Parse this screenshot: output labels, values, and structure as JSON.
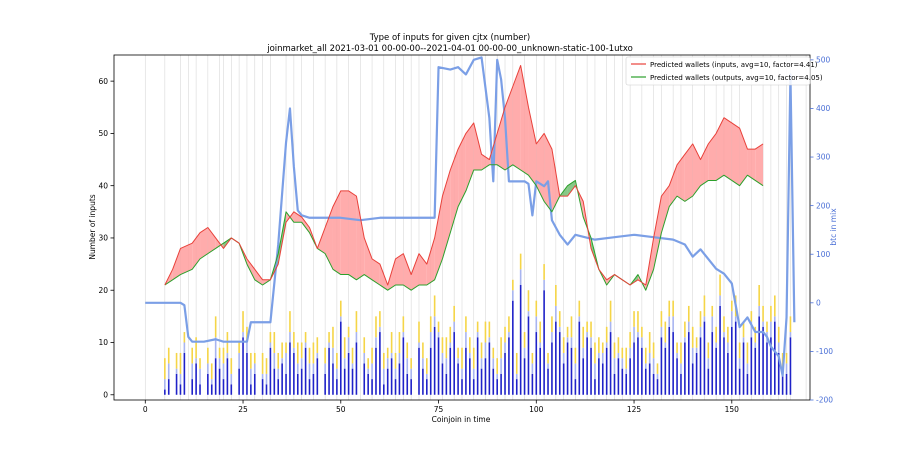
{
  "chart_data": {
    "type": "line",
    "title": "Type of inputs for given cjtx (number)",
    "subtitle": "joinmarket_all 2021-03-01 00-00-00--2021-04-01 00-00-00_unknown-static-100-1utxo",
    "xlabel": "Coinjoin in time",
    "ylabel": "Number of inputs",
    "y2label": "btc in mix",
    "xlim": [
      -8,
      170
    ],
    "ylim": [
      -1,
      65
    ],
    "y2lim": [
      -200,
      510
    ],
    "x_ticks": [
      0,
      25,
      50,
      75,
      100,
      125,
      150
    ],
    "y_ticks": [
      0,
      10,
      20,
      30,
      40,
      50,
      60
    ],
    "y2_ticks": [
      -200,
      -100,
      0,
      100,
      200,
      300,
      400,
      500
    ],
    "grid": false,
    "legend_position": "top-right",
    "colors": {
      "inputs": "#e8413a",
      "inputs_fill": "#ff9d9d",
      "outputs": "#2ca02c",
      "outputs_fill": "#5fb65f",
      "btc": "#7b9fe6",
      "bars_dark": "#1f22c8",
      "bars_light": "#a8b4f0",
      "bars_yellow": "#f5d547",
      "y2_axis": "#4a6fd6",
      "vlines": "#d9d9d9"
    },
    "series": [
      {
        "name": "Predicted wallets (inputs, avg=10, factor=4.41)",
        "x": [
          5,
          7,
          9,
          12,
          14,
          16,
          18,
          20,
          22,
          24,
          26,
          28,
          30,
          32,
          34,
          36,
          38,
          40,
          42,
          44,
          46,
          48,
          50,
          52,
          54,
          56,
          58,
          60,
          62,
          64,
          66,
          68,
          70,
          72,
          74,
          76,
          78,
          80,
          82,
          84,
          86,
          88,
          90,
          92,
          94,
          96,
          98,
          100,
          102,
          104,
          106,
          108,
          110,
          112,
          114,
          116,
          118,
          120,
          122,
          124,
          126,
          128,
          130,
          132,
          134,
          136,
          138,
          140,
          142,
          144,
          146,
          148,
          150,
          152,
          154,
          156,
          158
        ],
        "values": [
          21,
          24,
          28,
          29,
          31,
          32,
          30,
          28,
          30,
          29,
          26,
          24,
          22,
          22,
          25,
          33,
          35,
          34,
          32,
          28,
          32,
          36,
          39,
          39,
          38,
          30,
          26,
          25,
          21,
          26,
          27,
          23,
          27,
          25,
          30,
          38,
          43,
          47,
          50,
          52,
          46,
          45,
          50,
          55,
          59,
          63,
          55,
          48,
          50,
          47,
          38,
          38,
          40,
          37,
          28,
          24,
          22,
          23,
          22,
          21,
          22,
          21,
          30,
          38,
          40,
          44,
          46,
          48,
          45,
          48,
          50,
          53,
          52,
          51,
          47,
          47,
          48
        ]
      },
      {
        "name": "Predicted wallets (outputs, avg=10, factor=4.05)",
        "x": [
          5,
          7,
          9,
          12,
          14,
          16,
          18,
          20,
          22,
          24,
          26,
          28,
          30,
          32,
          34,
          36,
          38,
          40,
          42,
          44,
          46,
          48,
          50,
          52,
          54,
          56,
          58,
          60,
          62,
          64,
          66,
          68,
          70,
          72,
          74,
          76,
          78,
          80,
          82,
          84,
          86,
          88,
          90,
          92,
          94,
          96,
          98,
          100,
          102,
          104,
          106,
          108,
          110,
          112,
          114,
          116,
          118,
          120,
          122,
          124,
          126,
          128,
          130,
          132,
          134,
          136,
          138,
          140,
          142,
          144,
          146,
          148,
          150,
          152,
          154,
          156,
          158
        ],
        "values": [
          21,
          22,
          23,
          24,
          26,
          27,
          28,
          29,
          30,
          29,
          25,
          22,
          21,
          22,
          27,
          35,
          33,
          33,
          31,
          28,
          27,
          24,
          23,
          23,
          22,
          23,
          22,
          21,
          20,
          21,
          21,
          20,
          21,
          21,
          22,
          26,
          31,
          36,
          39,
          43,
          43,
          44,
          44,
          43,
          44,
          43,
          42,
          40,
          37,
          35,
          38,
          40,
          41,
          34,
          30,
          24,
          21,
          23,
          22,
          21,
          23,
          20,
          24,
          31,
          36,
          38,
          37,
          38,
          40,
          41,
          41,
          42,
          41,
          40,
          42,
          41,
          40
        ]
      },
      {
        "name": "btc in mix",
        "axis": "right",
        "x": [
          0,
          9,
          10,
          11,
          12,
          15,
          18,
          20,
          24,
          25,
          26,
          27,
          30,
          32,
          34,
          36,
          37,
          38,
          39,
          40,
          42,
          45,
          50,
          55,
          60,
          65,
          70,
          74,
          75,
          78,
          80,
          82,
          84,
          86,
          88,
          89,
          90,
          91,
          92,
          93,
          95,
          97,
          98,
          99,
          100,
          102,
          103,
          104,
          106,
          108,
          110,
          115,
          120,
          125,
          130,
          135,
          138,
          140,
          142,
          144,
          146,
          148,
          150,
          152,
          154,
          156,
          158,
          159,
          160,
          161,
          162,
          163,
          164,
          165,
          166
        ],
        "values": [
          0,
          0,
          -5,
          -70,
          -80,
          -80,
          -75,
          -80,
          -80,
          -80,
          -80,
          -40,
          -40,
          -40,
          120,
          330,
          400,
          280,
          190,
          180,
          175,
          175,
          175,
          170,
          175,
          175,
          175,
          175,
          485,
          480,
          485,
          470,
          500,
          505,
          380,
          250,
          500,
          460,
          380,
          250,
          250,
          250,
          245,
          180,
          250,
          240,
          250,
          170,
          140,
          120,
          140,
          130,
          135,
          140,
          135,
          130,
          120,
          95,
          110,
          90,
          70,
          60,
          40,
          -50,
          -30,
          -60,
          -60,
          -70,
          -90,
          -100,
          -110,
          -150,
          -30,
          470,
          -40
        ]
      }
    ],
    "bars_note": "per-coinjoin stacked input bars",
    "bars": {
      "x": [
        5,
        6,
        8,
        9,
        10,
        12,
        13,
        14,
        16,
        17,
        18,
        19,
        20,
        21,
        22,
        24,
        25,
        26,
        27,
        28,
        30,
        31,
        32,
        33,
        34,
        35,
        36,
        37,
        38,
        39,
        40,
        41,
        42,
        43,
        44,
        46,
        47,
        48,
        49,
        50,
        51,
        52,
        53,
        54,
        56,
        57,
        58,
        59,
        60,
        61,
        62,
        63,
        64,
        65,
        66,
        67,
        68,
        70,
        71,
        72,
        73,
        74,
        75,
        76,
        77,
        78,
        79,
        80,
        81,
        82,
        83,
        84,
        85,
        86,
        87,
        88,
        89,
        90,
        91,
        92,
        93,
        94,
        95,
        96,
        97,
        98,
        99,
        100,
        101,
        102,
        103,
        104,
        105,
        106,
        107,
        108,
        109,
        110,
        111,
        112,
        113,
        114,
        115,
        116,
        117,
        118,
        119,
        120,
        121,
        122,
        123,
        124,
        125,
        126,
        127,
        128,
        129,
        130,
        131,
        132,
        133,
        134,
        135,
        136,
        137,
        138,
        139,
        140,
        141,
        142,
        143,
        144,
        145,
        146,
        147,
        148,
        149,
        150,
        151,
        152,
        153,
        154,
        155,
        156,
        157,
        158,
        159,
        160,
        161,
        162,
        163,
        164,
        165
      ],
      "dark": [
        1,
        3,
        4,
        2,
        8,
        3,
        6,
        2,
        4,
        2,
        7,
        5,
        3,
        7,
        2,
        5,
        11,
        8,
        2,
        4,
        3,
        2,
        9,
        5,
        3,
        6,
        4,
        10,
        8,
        4,
        5,
        9,
        3,
        4,
        7,
        4,
        9,
        6,
        3,
        14,
        5,
        8,
        5,
        10,
        6,
        4,
        3,
        9,
        12,
        2,
        5,
        7,
        3,
        6,
        11,
        4,
        3,
        9,
        5,
        3,
        9,
        13,
        11,
        6,
        4,
        9,
        12,
        6,
        3,
        9,
        7,
        3,
        11,
        5,
        7,
        10,
        5,
        3,
        4,
        8,
        11,
        18,
        3,
        21,
        7,
        15,
        4,
        12,
        9,
        20,
        5,
        10,
        14,
        12,
        6,
        10,
        9,
        3,
        14,
        7,
        11,
        9,
        3,
        7,
        6,
        9,
        12,
        4,
        7,
        5,
        4,
        7,
        10,
        11,
        9,
        5,
        6,
        4,
        3,
        11,
        9,
        13,
        12,
        7,
        4,
        10,
        12,
        6,
        8,
        11,
        14,
        5,
        12,
        9,
        17,
        11,
        8,
        13,
        14,
        5,
        10,
        4,
        11,
        9,
        15,
        13,
        10,
        11,
        14,
        8,
        4,
        4,
        11
      ],
      "light": [
        2,
        3,
        1,
        2,
        2,
        3,
        1,
        3,
        2,
        1,
        4,
        2,
        3,
        1,
        2,
        3,
        1,
        2,
        3,
        2,
        1,
        2,
        1,
        3,
        2,
        1,
        4,
        2,
        1,
        2,
        2,
        1,
        3,
        2,
        1,
        2,
        1,
        3,
        2,
        1,
        2,
        3,
        1,
        2,
        2,
        1,
        3,
        2,
        1,
        3,
        2,
        1,
        2,
        2,
        1,
        3,
        2,
        1,
        2,
        1,
        3,
        2,
        1,
        2,
        3,
        1,
        2,
        1,
        2,
        3,
        1,
        2,
        1,
        2,
        3,
        1,
        2,
        1,
        3,
        2,
        1,
        2,
        1,
        3,
        2,
        1,
        2,
        3,
        1,
        2,
        1,
        2,
        3,
        1,
        2,
        1,
        2,
        3,
        1,
        2,
        1,
        2,
        3,
        1,
        2,
        1,
        2,
        3,
        1,
        2,
        1,
        2,
        3,
        1,
        2,
        1,
        2,
        3,
        1,
        2,
        1,
        2,
        3,
        1,
        2,
        1,
        2,
        3,
        1,
        2,
        1,
        2,
        3,
        1,
        2,
        1,
        2,
        3,
        1,
        2,
        1,
        2,
        3,
        1,
        2,
        1,
        2,
        3,
        1,
        2,
        1,
        2,
        1
      ],
      "yellow": [
        4,
        3,
        3,
        4,
        2,
        3,
        4,
        2,
        3,
        3,
        4,
        2,
        3,
        4,
        3,
        2,
        4,
        3,
        3,
        2,
        4,
        3,
        2,
        4,
        3,
        3,
        2,
        4,
        3,
        4,
        3,
        2,
        3,
        4,
        3,
        3,
        2,
        4,
        3,
        3,
        4,
        2,
        3,
        4,
        3,
        2,
        3,
        4,
        3,
        3,
        2,
        4,
        3,
        4,
        3,
        3,
        2,
        4,
        3,
        3,
        3,
        4,
        2,
        3,
        4,
        3,
        3,
        2,
        4,
        3,
        3,
        4,
        2,
        3,
        4,
        3,
        2,
        3,
        4,
        3,
        3,
        2,
        4,
        3,
        3,
        4,
        2,
        3,
        4,
        3,
        2,
        3,
        4,
        3,
        3,
        2,
        4,
        3,
        3,
        4,
        2,
        3,
        4,
        3,
        2,
        3,
        4,
        3,
        3,
        2,
        4,
        3,
        3,
        4,
        2,
        3,
        4,
        3,
        2,
        3,
        4,
        3,
        3,
        2,
        4,
        3,
        3,
        4,
        2,
        3,
        4,
        3,
        2,
        3,
        4,
        3,
        3,
        2,
        4,
        3,
        3,
        4,
        2,
        3,
        4,
        3,
        2,
        3,
        4,
        3,
        3,
        2,
        3
      ]
    },
    "vertical_lines_x": [
      0,
      5,
      9,
      11,
      13,
      16,
      19,
      20,
      22,
      24,
      26,
      28,
      30,
      32,
      36,
      38,
      40,
      43,
      46,
      49,
      52,
      55,
      58,
      61,
      64,
      66,
      68,
      70,
      73,
      76,
      79,
      81,
      84,
      87,
      90,
      92,
      94,
      97,
      100,
      102,
      105,
      107,
      110,
      113,
      115,
      118,
      120,
      122,
      124,
      127,
      130,
      132,
      135,
      137,
      140,
      143,
      146,
      148,
      150,
      152,
      155,
      158,
      160,
      162,
      164,
      165,
      169
    ]
  }
}
